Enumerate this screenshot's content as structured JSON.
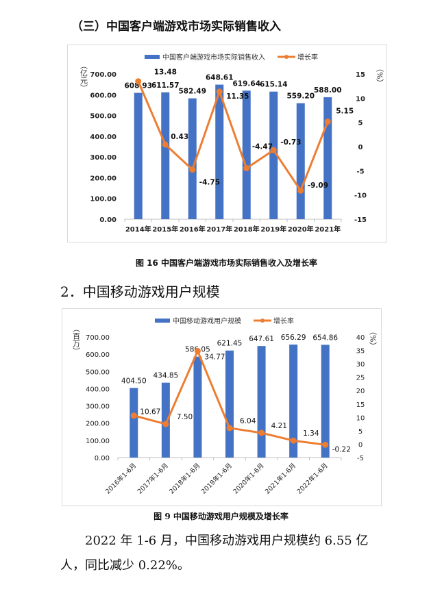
{
  "section_title": "（三）中国客户端游戏市场实际销售收入",
  "figure16_caption": "图 16 中国客户端游戏市场实际销售收入及增长率",
  "heading2": "2．中国移动游戏用户规模",
  "figure9_caption": "图 9 中国移动游戏用户规模及增长率",
  "paragraph": "2022 年 1-6 月，中国移动游戏用户规模约 6.55 亿人，同比减少 0.22%。",
  "colors": {
    "bar": "#4472C4",
    "line": "#ED7D31"
  },
  "chart_data": [
    {
      "type": "bar+line",
      "categories": [
        "2014年",
        "2015年",
        "2016年",
        "2017年",
        "2018年",
        "2019年",
        "2020年",
        "2021年"
      ],
      "series": [
        {
          "name": "中国客户端游戏市场实际销售收入",
          "type": "bar",
          "axis": "left",
          "values": [
            608.93,
            611.57,
            582.49,
            648.61,
            619.64,
            615.14,
            559.2,
            588.0
          ]
        },
        {
          "name": "增长率",
          "type": "line",
          "axis": "right",
          "values": [
            13.48,
            0.43,
            -4.75,
            11.35,
            -4.47,
            -0.73,
            -9.09,
            5.15
          ]
        }
      ],
      "ylabel": "（亿元）",
      "y2label": "（%）",
      "ylim": [
        0,
        700
      ],
      "y2lim": [
        -15,
        15
      ],
      "yticks": [
        "0.00",
        "100.00",
        "200.00",
        "300.00",
        "400.00",
        "500.00",
        "600.00",
        "700.00"
      ],
      "y2ticks": [
        "-15",
        "-10",
        "-5",
        "0",
        "5",
        "10",
        "15"
      ],
      "legend": "top",
      "grid": false
    },
    {
      "type": "bar+line",
      "categories": [
        "2016年1-6月",
        "2017年1-6月",
        "2018年1-6月",
        "2019年1-6月",
        "2020年1-6月",
        "2021年1-6月",
        "2022年1-6月"
      ],
      "series": [
        {
          "name": "中国移动游戏用户规模",
          "type": "bar",
          "axis": "left",
          "values": [
            404.5,
            434.85,
            586.05,
            621.45,
            647.61,
            656.29,
            654.86
          ]
        },
        {
          "name": "增长率",
          "type": "line",
          "axis": "right",
          "values": [
            10.67,
            7.5,
            34.77,
            6.04,
            4.21,
            1.34,
            -0.22
          ]
        }
      ],
      "ylabel": "（百万）",
      "y2label": "（%）",
      "ylim": [
        0,
        700
      ],
      "y2lim": [
        -5,
        40
      ],
      "yticks": [
        "0.00",
        "100.00",
        "200.00",
        "300.00",
        "400.00",
        "500.00",
        "600.00",
        "700.00"
      ],
      "y2ticks": [
        "-5",
        "0",
        "5",
        "10",
        "15",
        "20",
        "25",
        "30",
        "35",
        "40"
      ],
      "legend": "top",
      "grid": false
    }
  ]
}
